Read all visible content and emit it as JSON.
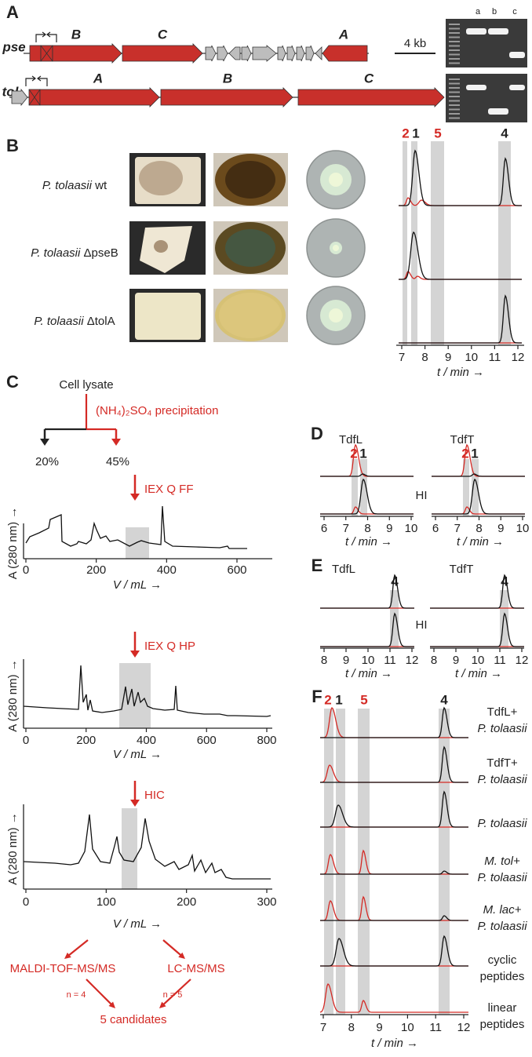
{
  "panels": {
    "A": {
      "label": "A",
      "pse_label": "pse",
      "pse_genes": [
        "B",
        "C",
        "A"
      ],
      "tol_label": "tol",
      "tol_genes": [
        "A",
        "B",
        "C"
      ],
      "scale_bar": "4 kb",
      "gel_lanes": [
        "a",
        "b",
        "c"
      ]
    },
    "B": {
      "label": "B",
      "strains": [
        {
          "organism": "P. tolaasii",
          "strain": "wt"
        },
        {
          "organism": "P. tolaasii",
          "strain": "ΔpseB"
        },
        {
          "organism": "P. tolaasii",
          "strain": "ΔtolA"
        }
      ],
      "peak_labels": [
        "2",
        "1",
        "5",
        "4"
      ],
      "xticks": [
        7,
        8,
        9,
        10,
        11,
        12
      ],
      "xlabel": "t / min →"
    },
    "C": {
      "label": "C",
      "source": "Cell lysate",
      "precipitation": "(NH₄)₂SO₄ precipitation",
      "fractions": [
        "20%",
        "45%"
      ],
      "steps": [
        {
          "name": "IEX Q FF",
          "xticks": [
            0,
            200,
            400,
            600
          ]
        },
        {
          "name": "IEX Q HP",
          "xticks": [
            0,
            200,
            400,
            600,
            800
          ]
        },
        {
          "name": "HIC",
          "xticks": [
            0,
            100,
            200,
            300
          ]
        }
      ],
      "xlabel": "V / mL →",
      "ylabel": "A (280 nm) →",
      "methods": [
        "MALDI-TOF-MS/MS",
        "LC-MS/MS"
      ],
      "counts": [
        "n = 4",
        "n = 5"
      ],
      "result": "5 candidates"
    },
    "D": {
      "label": "D",
      "enzymes": [
        "TdfL",
        "TdfT"
      ],
      "peak_labels": [
        "2",
        "1"
      ],
      "control": "HI",
      "xticks": [
        6,
        7,
        8,
        9,
        10
      ],
      "xlabel": "t / min →"
    },
    "E": {
      "label": "E",
      "enzymes": [
        "TdfL",
        "TdfT"
      ],
      "peak_labels": [
        "4"
      ],
      "control": "HI",
      "xticks": [
        8,
        9,
        10,
        11,
        12
      ],
      "xlabel": "t / min →"
    },
    "F": {
      "label": "F",
      "peak_labels": [
        "2",
        "1",
        "5",
        "4"
      ],
      "rows": [
        [
          "TdfL+",
          "P. tolaasii"
        ],
        [
          "TdfT+",
          "P. tolaasii"
        ],
        [
          "P. tolaasii"
        ],
        [
          "M. tol+",
          "P. tolaasii"
        ],
        [
          "M. lac+",
          "P. tolaasii"
        ],
        [
          "cyclic",
          "peptides"
        ],
        [
          "linear",
          "peptides"
        ]
      ],
      "xticks": [
        7,
        8,
        9,
        10,
        11,
        12
      ],
      "xlabel": "t / min →"
    }
  }
}
